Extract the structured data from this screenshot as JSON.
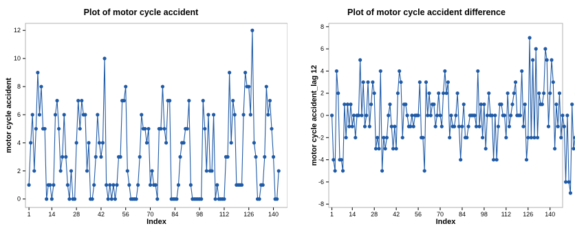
{
  "charts": [
    {
      "type": "line",
      "title": "Plot of motor cycle accident",
      "xlabel": "Index",
      "ylabel": "motor cycle accident",
      "ylim": [
        -0.6,
        12.5
      ],
      "yticks": [
        0,
        2,
        4,
        6,
        8,
        10,
        12
      ],
      "xlim": [
        -1,
        148
      ],
      "xticks": [
        1,
        14,
        28,
        42,
        56,
        70,
        84,
        98,
        112,
        126,
        140
      ],
      "color": "#1f5aa6",
      "values": [
        1,
        4,
        6,
        2,
        5,
        9,
        6,
        8,
        5,
        5,
        0,
        1,
        1,
        0,
        1,
        6,
        7,
        5,
        2,
        3,
        6,
        3,
        1,
        0,
        2,
        0,
        0,
        4,
        7,
        5,
        7,
        6,
        6,
        2,
        4,
        0,
        0,
        1,
        3,
        6,
        4,
        3,
        4,
        10,
        1,
        0,
        1,
        0,
        1,
        0,
        1,
        3,
        3,
        7,
        7,
        8,
        2,
        1,
        0,
        0,
        0,
        0,
        1,
        3,
        6,
        5,
        5,
        4,
        5,
        1,
        2,
        1,
        1,
        0,
        5,
        5,
        8,
        5,
        4,
        7,
        7,
        0,
        0,
        0,
        0,
        1,
        3,
        4,
        4,
        5,
        5,
        7,
        1,
        0,
        0,
        0,
        0,
        0,
        0,
        7,
        5,
        2,
        6,
        2,
        2,
        6,
        0,
        1,
        0,
        0,
        0,
        0,
        3,
        3,
        9,
        4,
        7,
        6,
        1,
        1,
        1,
        1,
        6,
        9,
        8,
        8,
        6,
        12,
        4,
        3,
        0,
        0,
        1,
        1,
        3,
        8,
        6,
        7,
        5,
        3,
        0,
        0,
        2
      ]
    },
    {
      "type": "line",
      "title": "Plot of motor cycle accident difference",
      "xlabel": "Index",
      "ylabel": "motor cycle accident_lag 12",
      "ylim": [
        -8.3,
        8.3
      ],
      "yticks": [
        -8,
        -6,
        -4,
        -2,
        0,
        2,
        4,
        6,
        8
      ],
      "xlim": [
        -1,
        148
      ],
      "xticks": [
        1,
        14,
        28,
        42,
        56,
        70,
        84,
        98,
        112,
        126,
        140
      ],
      "color": "#1f5aa6",
      "values": [
        0,
        -4,
        -5,
        4,
        2,
        -4,
        -4,
        -5,
        1,
        -2,
        1,
        -1,
        1,
        -1,
        0,
        -2,
        0,
        0,
        5,
        0,
        3,
        -1,
        0,
        3,
        -1,
        1,
        3,
        2,
        -3,
        -2,
        -3,
        4,
        -5,
        -2,
        -3,
        -2,
        0,
        1,
        -1,
        -3,
        -1,
        -3,
        2,
        4,
        3,
        -2,
        1,
        1,
        0,
        -1,
        -1,
        0,
        -1,
        0,
        0,
        0,
        3,
        -2,
        -2,
        -5,
        3,
        0,
        2,
        0,
        1,
        1,
        -1,
        0,
        2,
        0,
        -1,
        2,
        4,
        2,
        3,
        -2,
        0,
        -1,
        -1,
        0,
        2,
        -1,
        -4,
        -1,
        1,
        -2,
        -2,
        -1,
        0,
        0,
        0,
        0,
        -1,
        4,
        -1,
        1,
        -2,
        1,
        -3,
        0,
        2,
        0,
        0,
        -4,
        0,
        -4,
        -1,
        1,
        1,
        0,
        0,
        -2,
        2,
        -1,
        0,
        1,
        2,
        3,
        0,
        0,
        0,
        4,
        -1,
        1,
        -4,
        -2,
        7,
        -2,
        5,
        -2,
        6,
        -2,
        2,
        1,
        1,
        2,
        6,
        5,
        -1,
        2,
        5,
        3,
        -3,
        1,
        -1,
        2,
        -2,
        0,
        -1,
        -6,
        0,
        -6,
        -7,
        1,
        -3,
        -2,
        2
      ]
    }
  ]
}
